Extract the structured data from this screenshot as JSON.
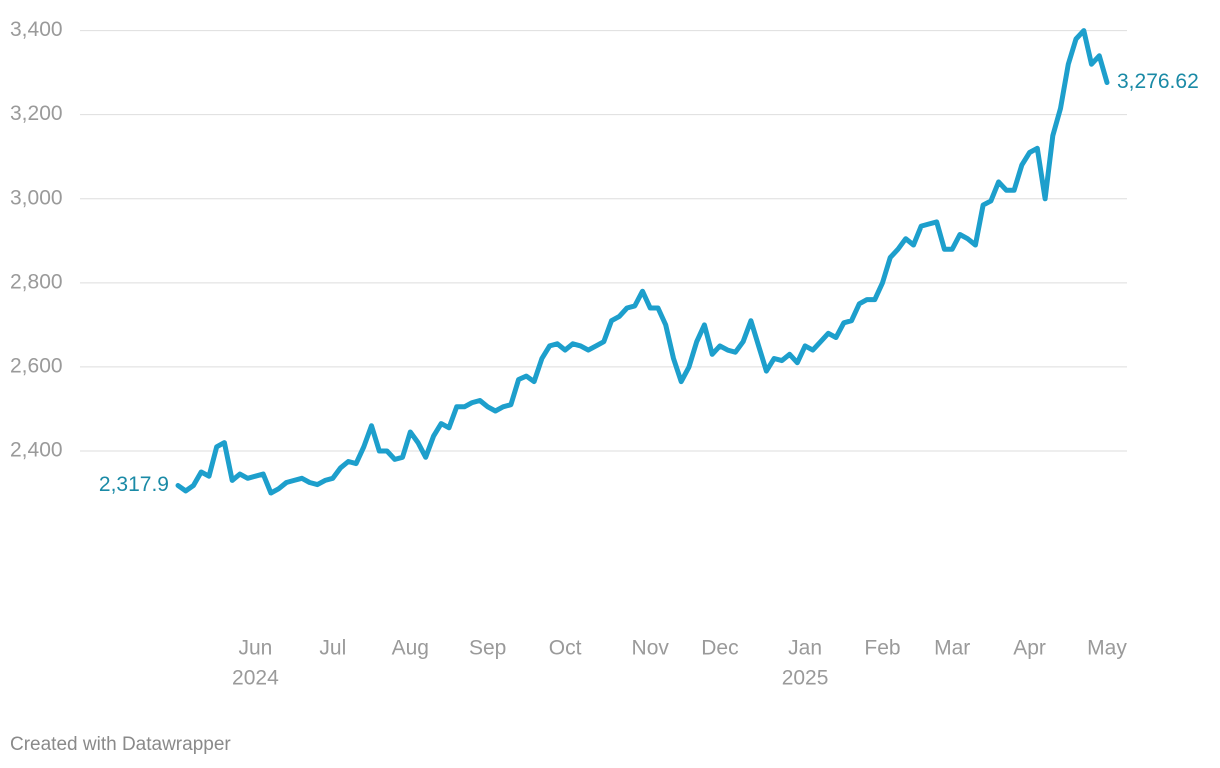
{
  "chart_data": {
    "type": "line",
    "categories": [
      null,
      null,
      null,
      null,
      null,
      null,
      null,
      null,
      null,
      null,
      [
        "Jun",
        "2024"
      ],
      null,
      null,
      null,
      null,
      null,
      null,
      null,
      null,
      null,
      "Jul",
      null,
      null,
      null,
      null,
      null,
      null,
      null,
      null,
      null,
      "Aug",
      null,
      null,
      null,
      null,
      null,
      null,
      null,
      null,
      null,
      "Sep",
      null,
      null,
      null,
      null,
      null,
      null,
      null,
      null,
      null,
      "Oct",
      null,
      null,
      null,
      null,
      null,
      null,
      null,
      null,
      null,
      null,
      "Nov",
      null,
      null,
      null,
      null,
      null,
      null,
      null,
      null,
      "Dec",
      null,
      null,
      null,
      null,
      null,
      null,
      null,
      null,
      null,
      null,
      [
        "Jan",
        "2025"
      ],
      null,
      null,
      null,
      null,
      null,
      null,
      null,
      null,
      null,
      "Feb",
      null,
      null,
      null,
      null,
      null,
      null,
      null,
      null,
      "Mar",
      null,
      null,
      null,
      null,
      null,
      null,
      null,
      null,
      null,
      "Apr",
      null,
      null,
      null,
      null,
      null,
      null,
      null,
      null,
      null,
      "May"
    ],
    "series": [
      {
        "color": "#1d9fcc",
        "values": [
          2317.9,
          2305,
          2318,
          2350,
          2340,
          2410,
          2420,
          2330,
          2345,
          2335,
          2340,
          2345,
          2300,
          2310,
          2325,
          2330,
          2335,
          2325,
          2320,
          2330,
          2335,
          2360,
          2375,
          2370,
          2410,
          2460,
          2400,
          2400,
          2380,
          2385,
          2445,
          2420,
          2385,
          2435,
          2465,
          2455,
          2505,
          2505,
          2515,
          2520,
          2505,
          2495,
          2505,
          2510,
          2570,
          2578,
          2565,
          2620,
          2650,
          2655,
          2640,
          2655,
          2650,
          2640,
          2650,
          2660,
          2710,
          2720,
          2740,
          2745,
          2780,
          2740,
          2740,
          2700,
          2620,
          2565,
          2600,
          2660,
          2700,
          2630,
          2650,
          2640,
          2635,
          2660,
          2710,
          2650,
          2590,
          2620,
          2615,
          2630,
          2610,
          2650,
          2640,
          2660,
          2680,
          2670,
          2705,
          2710,
          2750,
          2760,
          2760,
          2800,
          2860,
          2880,
          2905,
          2890,
          2935,
          2940,
          2945,
          2880,
          2880,
          2915,
          2905,
          2890,
          2985,
          2995,
          3040,
          3020,
          3020,
          3080,
          3110,
          3120,
          3000,
          3150,
          3215,
          3320,
          3380,
          3400,
          3320,
          3340,
          3276.62
        ],
        "value_labels": [
          "2,317.9",
          null,
          null,
          null,
          null,
          null,
          null,
          null,
          null,
          null,
          null,
          null,
          null,
          null,
          null,
          null,
          null,
          null,
          null,
          null,
          null,
          null,
          null,
          null,
          null,
          null,
          null,
          null,
          null,
          null,
          null,
          null,
          null,
          null,
          null,
          null,
          null,
          null,
          null,
          null,
          null,
          null,
          null,
          null,
          null,
          null,
          null,
          null,
          null,
          null,
          null,
          null,
          null,
          null,
          null,
          null,
          null,
          null,
          null,
          null,
          null,
          null,
          null,
          null,
          null,
          null,
          null,
          null,
          null,
          null,
          null,
          null,
          null,
          null,
          null,
          null,
          null,
          null,
          null,
          null,
          null,
          null,
          null,
          null,
          null,
          null,
          null,
          null,
          null,
          null,
          null,
          null,
          null,
          null,
          null,
          null,
          null,
          null,
          null,
          null,
          null,
          null,
          null,
          null,
          null,
          null,
          null,
          null,
          null,
          null,
          null,
          null,
          null,
          null,
          null,
          null,
          null,
          null,
          null,
          null,
          "3,276.62"
        ]
      }
    ],
    "ylim": [
      2280,
      3440
    ],
    "yticks": [
      {
        "value": 2400,
        "label": "2,400"
      },
      {
        "value": 2600,
        "label": "2,600"
      },
      {
        "value": 2800,
        "label": "2,800"
      },
      {
        "value": 3000,
        "label": "3,000"
      },
      {
        "value": 3200,
        "label": "3,200"
      },
      {
        "value": 3400,
        "label": "3,400"
      }
    ],
    "grid": true,
    "footer": "Created with Datawrapper"
  }
}
